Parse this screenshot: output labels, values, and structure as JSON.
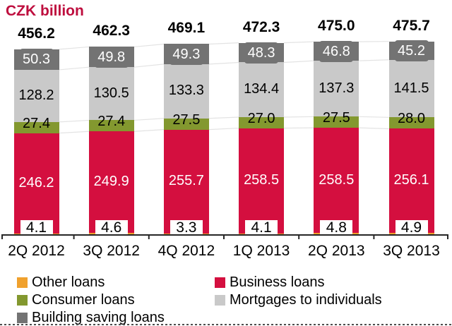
{
  "chart_data": {
    "type": "bar",
    "stacked": true,
    "title": "CZK billion",
    "categories": [
      "2Q 2012",
      "3Q 2012",
      "4Q 2012",
      "1Q 2013",
      "2Q 2013",
      "3Q 2013"
    ],
    "series": [
      {
        "name": "Other loans",
        "color_key": "other_loans",
        "values": [
          4.1,
          4.6,
          3.3,
          4.1,
          4.8,
          4.9
        ]
      },
      {
        "name": "Business loans",
        "color_key": "business_loans",
        "values": [
          246.2,
          249.9,
          255.7,
          258.5,
          258.5,
          256.1
        ]
      },
      {
        "name": "Consumer loans",
        "color_key": "consumer_loans",
        "values": [
          27.4,
          27.4,
          27.5,
          27.0,
          27.5,
          28.0
        ]
      },
      {
        "name": "Mortgages to individuals",
        "color_key": "mortgages",
        "values": [
          128.2,
          130.5,
          133.3,
          134.4,
          137.3,
          141.5
        ]
      },
      {
        "name": "Building saving loans",
        "color_key": "building_saving",
        "values": [
          50.3,
          49.8,
          49.3,
          48.3,
          46.8,
          45.2
        ]
      }
    ],
    "totals": [
      456.2,
      462.3,
      469.1,
      472.3,
      475.0,
      475.7
    ],
    "ylim": [
      0,
      500
    ],
    "grid": false,
    "legend_position": "bottom"
  },
  "legend": {
    "columns": [
      {
        "items": [
          {
            "label": "Other loans",
            "color_key": "other_loans"
          },
          {
            "label": "Consumer loans",
            "color_key": "consumer_loans"
          },
          {
            "label": "Building saving loans",
            "color_key": "building_saving"
          }
        ]
      },
      {
        "items": [
          {
            "label": "Business loans",
            "color_key": "business_loans"
          },
          {
            "label": "Mortgages to individuals",
            "color_key": "mortgages"
          }
        ]
      }
    ]
  },
  "colors": {
    "title_text": "#BE0E3E",
    "other_loans": "#F0A12D",
    "business_loans": "#D40F3F",
    "consumer_loans": "#83982F",
    "mortgages": "#C9C9C9",
    "building_saving": "#737373",
    "axis_line": "#262626",
    "connector_line": "#E3E3E3",
    "value_text_dark": "#000000",
    "value_text_light": "#FFFFFF"
  }
}
